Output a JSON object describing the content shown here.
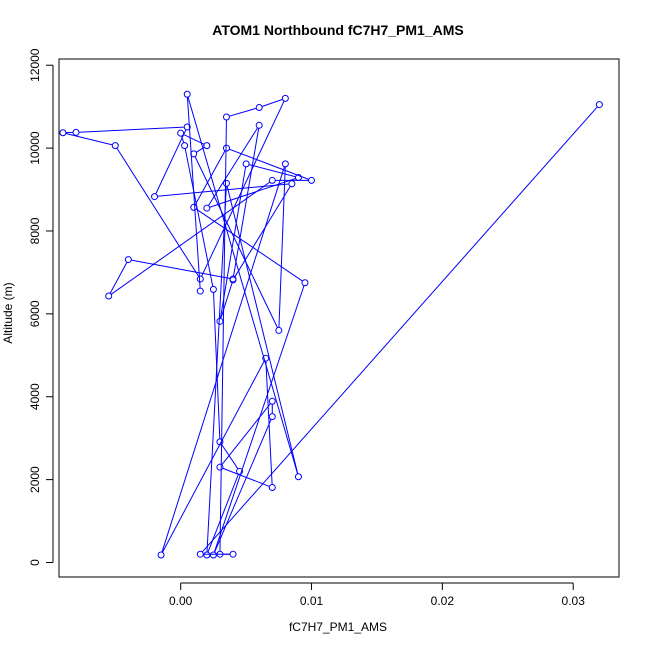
{
  "chart_data": {
    "type": "line",
    "title": "ATOM1 Northbound fC7H7_PM1_AMS",
    "xlabel": "fC7H7_PM1_AMS",
    "ylabel": "Altitude (m)",
    "xlim": [
      -0.0093,
      0.0335
    ],
    "ylim": [
      -350,
      12150
    ],
    "x_ticks": [
      0.0,
      0.01,
      0.02,
      0.03
    ],
    "x_tick_labels": [
      "0.00",
      "0.01",
      "0.02",
      "0.03"
    ],
    "y_ticks": [
      0,
      2000,
      4000,
      6000,
      8000,
      10000,
      12000
    ],
    "y_tick_labels": [
      "0",
      "2000",
      "4000",
      "6000",
      "8000",
      "10000",
      "12000"
    ],
    "grid": false,
    "legend": "none",
    "series_color": "#0000ff",
    "marker": "open-circle",
    "series": [
      {
        "x": [
          0.032,
          0.0015,
          0.004,
          0.003,
          0.0035,
          0.006,
          0.008,
          0.0015,
          -0.005,
          -0.009,
          -0.008,
          0.0005,
          -0.002,
          0.0085,
          0.004,
          0.003,
          0.005,
          0.009,
          0.002,
          0.006,
          0.004,
          -0.004,
          -0.0055,
          0.007,
          0.01,
          0.0035,
          0.001,
          0.0095,
          0.0025,
          0.007,
          0.007,
          0.003,
          0.007,
          0.0065,
          -0.0015,
          0.008,
          0.0075,
          0.001,
          0.002,
          0.0,
          0.0003,
          0.0025,
          0.003,
          0.0045,
          0.002,
          0.0035,
          0.009,
          0.0005,
          0.0015
        ],
        "y": [
          11050,
          200,
          200,
          200,
          10750,
          10980,
          11200,
          6840,
          10060,
          10370,
          10380,
          10510,
          8830,
          9140,
          6820,
          5820,
          9620,
          9290,
          8550,
          10550,
          6840,
          7310,
          6430,
          9220,
          9220,
          10000,
          8570,
          6750,
          180,
          3520,
          3890,
          2300,
          1810,
          4930,
          180,
          9620,
          5600,
          9860,
          10060,
          10360,
          10060,
          6590,
          2910,
          2200,
          180,
          9150,
          2070,
          11300,
          6550
        ]
      }
    ]
  }
}
